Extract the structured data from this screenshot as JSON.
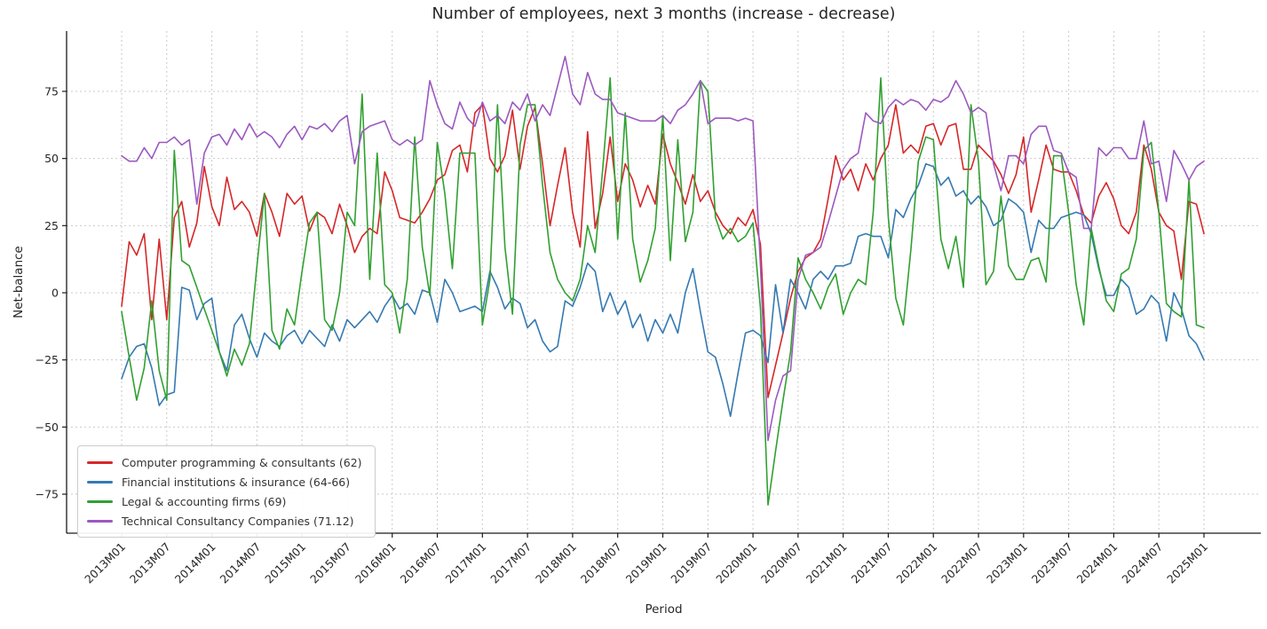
{
  "chart_data": {
    "type": "line",
    "title": "Number of employees, next 3 months (increase - decrease)",
    "xlabel": "Period",
    "ylabel": "Net-balance",
    "x_start": "2013M01",
    "x_end": "2025M01",
    "x_frequency": "monthly",
    "x_tick_labels": [
      "2013M01",
      "2013M07",
      "2014M01",
      "2014M07",
      "2015M01",
      "2015M07",
      "2016M01",
      "2016M07",
      "2017M01",
      "2017M07",
      "2018M01",
      "2018M07",
      "2019M01",
      "2019M07",
      "2020M01",
      "2020M07",
      "2021M01",
      "2021M07",
      "2022M01",
      "2022M07",
      "2023M01",
      "2023M07",
      "2024M01",
      "2024M07",
      "2025M01"
    ],
    "y_ticks": [
      75,
      50,
      25,
      0,
      -25,
      -50,
      -75
    ],
    "y_tick_labels": [
      "75",
      "50",
      "25",
      "0",
      "−25",
      "−50",
      "−75"
    ],
    "ylim": [
      -89,
      97
    ],
    "grid": true,
    "grid_style": "dashed",
    "legend_position": "lower left",
    "series": [
      {
        "name": "Computer programming & consultants (62)",
        "color": "#d62728",
        "values": [
          -5,
          19,
          14,
          22,
          -10,
          20,
          -10,
          28,
          34,
          17,
          26,
          47,
          32,
          25,
          43,
          31,
          34,
          30,
          21,
          37,
          30,
          21,
          37,
          33,
          36,
          23,
          30,
          28,
          22,
          33,
          25,
          15,
          21,
          24,
          22,
          45,
          38,
          28,
          27,
          26,
          30,
          35,
          42,
          44,
          53,
          55,
          45,
          67,
          70,
          50,
          45,
          51,
          68,
          46,
          62,
          69,
          48,
          25,
          40,
          54,
          30,
          17,
          60,
          24,
          37,
          58,
          34,
          48,
          42,
          32,
          40,
          33,
          59,
          48,
          41,
          33,
          44,
          34,
          38,
          30,
          25,
          22,
          28,
          25,
          31,
          18,
          -39,
          -27,
          -15,
          -2,
          8,
          13,
          15,
          20,
          35,
          51,
          42,
          46,
          38,
          48,
          42,
          50,
          55,
          70,
          52,
          55,
          52,
          62,
          63,
          55,
          62,
          63,
          46,
          46,
          55,
          52,
          49,
          44,
          37,
          44,
          58,
          30,
          42,
          55,
          46,
          45,
          45,
          38,
          29,
          26,
          36,
          41,
          35,
          25,
          22,
          30,
          55,
          46,
          30,
          25,
          23,
          5,
          34,
          33,
          22
        ]
      },
      {
        "name": "Financial institutions & insurance (64-66)",
        "color": "#3579b1",
        "values": [
          -32,
          -24,
          -20,
          -19,
          -28,
          -42,
          -38,
          -37,
          2,
          1,
          -10,
          -4,
          -2,
          -22,
          -29,
          -12,
          -8,
          -17,
          -24,
          -15,
          -18,
          -20,
          -16,
          -14,
          -19,
          -14,
          -17,
          -20,
          -12,
          -18,
          -10,
          -13,
          -10,
          -7,
          -11,
          -5,
          -1,
          -6,
          -4,
          -8,
          1,
          0,
          -11,
          5,
          0,
          -7,
          -6,
          -5,
          -7,
          8,
          2,
          -6,
          -2,
          -4,
          -13,
          -10,
          -18,
          -22,
          -20,
          -3,
          -5,
          2,
          11,
          8,
          -7,
          0,
          -8,
          -3,
          -13,
          -8,
          -18,
          -10,
          -15,
          -8,
          -15,
          0,
          9,
          -7,
          -22,
          -24,
          -34,
          -46,
          -30,
          -15,
          -14,
          -16,
          -26,
          3,
          -15,
          5,
          0,
          -6,
          5,
          8,
          5,
          10,
          10,
          11,
          21,
          22,
          21,
          21,
          13,
          31,
          28,
          35,
          40,
          48,
          47,
          40,
          43,
          36,
          38,
          33,
          36,
          32,
          25,
          27,
          35,
          33,
          30,
          15,
          27,
          24,
          24,
          28,
          29,
          30,
          29,
          22,
          9,
          -1,
          -1,
          5,
          2,
          -8,
          -6,
          -1,
          -4,
          -18,
          0,
          -6,
          -16,
          -19,
          -25
        ]
      },
      {
        "name": "Legal & accounting firms (69)",
        "color": "#31a031",
        "values": [
          -7,
          -24,
          -40,
          -28,
          -3,
          -29,
          -40,
          53,
          12,
          10,
          2,
          -6,
          -14,
          -22,
          -31,
          -21,
          -27,
          -19,
          10,
          37,
          -14,
          -21,
          -6,
          -12,
          8,
          26,
          30,
          -10,
          -14,
          0,
          30,
          25,
          74,
          5,
          52,
          3,
          0,
          -15,
          5,
          58,
          17,
          -1,
          56,
          37,
          9,
          52,
          52,
          52,
          -12,
          5,
          70,
          17,
          -8,
          55,
          70,
          70,
          40,
          15,
          5,
          0,
          -3,
          5,
          25,
          15,
          46,
          80,
          20,
          67,
          20,
          4,
          12,
          24,
          66,
          12,
          57,
          19,
          30,
          79,
          75,
          28,
          20,
          24,
          19,
          21,
          26,
          -6,
          -79,
          -59,
          -40,
          -22,
          13,
          5,
          0,
          -6,
          2,
          7,
          -8,
          0,
          5,
          3,
          30,
          80,
          28,
          -2,
          -12,
          16,
          49,
          58,
          57,
          20,
          9,
          21,
          2,
          70,
          49,
          3,
          8,
          36,
          10,
          5,
          5,
          12,
          13,
          4,
          51,
          51,
          30,
          3,
          -12,
          24,
          10,
          -3,
          -7,
          7,
          9,
          20,
          53,
          56,
          30,
          -4,
          -7,
          -9,
          42,
          -12,
          -13
        ]
      },
      {
        "name": "Technical Consultancy Companies (71.12)",
        "color": "#9b59c0",
        "values": [
          51,
          49,
          49,
          54,
          50,
          56,
          56,
          58,
          55,
          57,
          33,
          52,
          58,
          59,
          55,
          61,
          57,
          63,
          58,
          60,
          58,
          54,
          59,
          62,
          57,
          62,
          61,
          63,
          60,
          64,
          66,
          48,
          60,
          62,
          63,
          64,
          57,
          55,
          57,
          55,
          57,
          79,
          70,
          63,
          61,
          71,
          65,
          62,
          71,
          64,
          66,
          63,
          71,
          68,
          74,
          64,
          70,
          66,
          77,
          88,
          74,
          70,
          82,
          74,
          72,
          72,
          67,
          66,
          65,
          64,
          64,
          64,
          66,
          63,
          68,
          70,
          74,
          79,
          63,
          65,
          65,
          65,
          64,
          65,
          64,
          10,
          -55,
          -40,
          -31,
          -29,
          5,
          14,
          15,
          17,
          26,
          36,
          46,
          50,
          52,
          67,
          64,
          63,
          69,
          72,
          70,
          72,
          71,
          68,
          72,
          71,
          73,
          79,
          74,
          67,
          69,
          67,
          48,
          38,
          51,
          51,
          48,
          59,
          62,
          62,
          53,
          52,
          45,
          43,
          24,
          24,
          54,
          51,
          54,
          54,
          50,
          50,
          64,
          48,
          49,
          34,
          53,
          48,
          42,
          47,
          49
        ]
      }
    ]
  }
}
